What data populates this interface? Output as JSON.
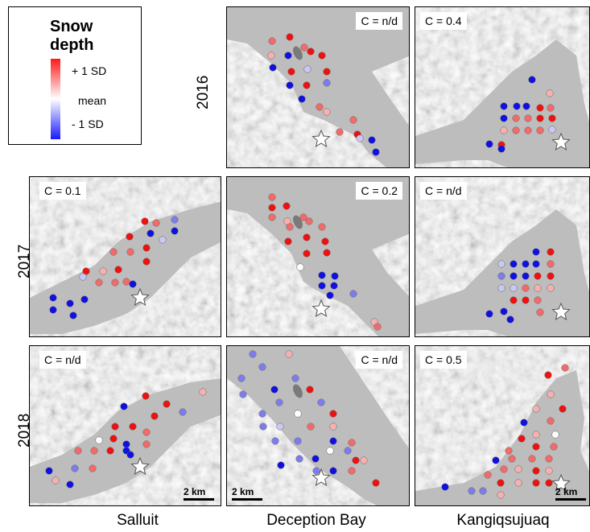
{
  "legend": {
    "title": "Snow depth",
    "high_label": "+ 1 SD",
    "mid_label": "mean",
    "low_label": "- 1 SD",
    "colors": {
      "high": "#ff1a1a",
      "mid": "#ffffff",
      "low": "#1a1aff"
    }
  },
  "rows": [
    "2016",
    "2017",
    "2018"
  ],
  "columns": [
    "Salluit",
    "Deception Bay",
    "Kangiqsujuaq"
  ],
  "panels": [
    {
      "site": "Deception Bay",
      "year": "2016",
      "c_value": "C = n/d"
    },
    {
      "site": "Kangiqsujuaq",
      "year": "2016",
      "c_value": "C = 0.4"
    },
    {
      "site": "Salluit",
      "year": "2017",
      "c_value": "C = 0.1"
    },
    {
      "site": "Deception Bay",
      "year": "2017",
      "c_value": "C = 0.2"
    },
    {
      "site": "Kangiqsujuaq",
      "year": "2017",
      "c_value": "C = n/d"
    },
    {
      "site": "Salluit",
      "year": "2018",
      "c_value": "C = n/d",
      "scale_label": "2 km"
    },
    {
      "site": "Deception Bay",
      "year": "2018",
      "c_value": "C = n/d",
      "scale_label": "2 km"
    },
    {
      "site": "Kangiqsujuaq",
      "year": "2018",
      "c_value": "C = 0.5",
      "scale_label": "2 km"
    }
  ],
  "icons": {
    "site_marker": "star-icon",
    "sample_point": "circle-icon"
  }
}
